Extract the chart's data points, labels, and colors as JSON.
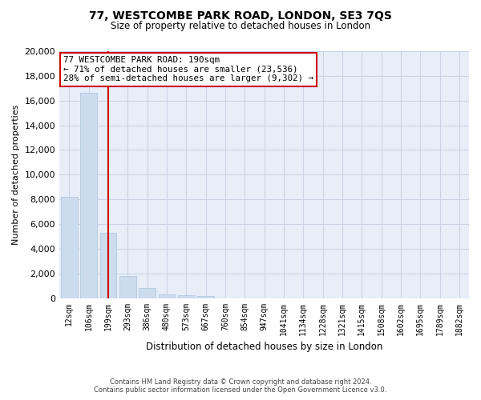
{
  "title": "77, WESTCOMBE PARK ROAD, LONDON, SE3 7QS",
  "subtitle": "Size of property relative to detached houses in London",
  "xlabel": "Distribution of detached houses by size in London",
  "ylabel": "Number of detached properties",
  "bar_color": "#ccdcee",
  "bar_edgecolor": "#aac4de",
  "vline_color": "#cc0000",
  "vline_x_index": 2,
  "annotation_line1": "77 WESTCOMBE PARK ROAD: 190sqm",
  "annotation_line2": "← 71% of detached houses are smaller (23,536)",
  "annotation_line3": "28% of semi-detached houses are larger (9,302) →",
  "annotation_box_facecolor": "#ffffff",
  "annotation_box_edgecolor": "#cc0000",
  "categories": [
    "12sqm",
    "106sqm",
    "199sqm",
    "293sqm",
    "386sqm",
    "480sqm",
    "573sqm",
    "667sqm",
    "760sqm",
    "854sqm",
    "947sqm",
    "1041sqm",
    "1134sqm",
    "1228sqm",
    "1321sqm",
    "1415sqm",
    "1508sqm",
    "1602sqm",
    "1695sqm",
    "1789sqm",
    "1882sqm"
  ],
  "values": [
    8200,
    16600,
    5300,
    1800,
    800,
    300,
    250,
    190,
    0,
    0,
    0,
    0,
    0,
    0,
    0,
    0,
    0,
    0,
    0,
    0,
    0
  ],
  "ylim": [
    0,
    20000
  ],
  "yticks": [
    0,
    2000,
    4000,
    6000,
    8000,
    10000,
    12000,
    14000,
    16000,
    18000,
    20000
  ],
  "footer_line1": "Contains HM Land Registry data © Crown copyright and database right 2024.",
  "footer_line2": "Contains public sector information licensed under the Open Government Licence v3.0.",
  "background_color": "#ffffff",
  "plot_bg_color": "#e8eef8",
  "grid_color": "#c8d4e4"
}
